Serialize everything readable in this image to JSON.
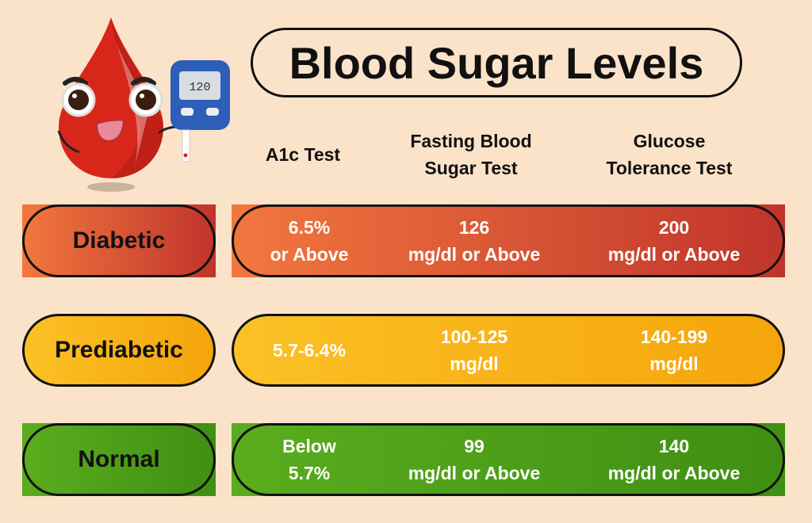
{
  "title": "Blood Sugar Levels",
  "meter_display": "120",
  "columns": [
    {
      "line1": "A1c Test",
      "line2": ""
    },
    {
      "line1": "Fasting Blood",
      "line2": "Sugar Test"
    },
    {
      "line1": "Glucose",
      "line2": "Tolerance Test"
    }
  ],
  "rows": [
    {
      "label": "Diabetic",
      "color_from": "#f2773f",
      "color_to": "#c0342b",
      "cells": [
        [
          "6.5%",
          "or Above"
        ],
        [
          "126",
          "mg/dl or Above"
        ],
        [
          "200",
          "mg/dl or Above"
        ]
      ]
    },
    {
      "label": "Prediabetic",
      "color_from": "#fbc126",
      "color_to": "#f5a50b",
      "cells": [
        [
          "5.7-6.4%",
          ""
        ],
        [
          "100-125",
          "mg/dl"
        ],
        [
          "140-199",
          "mg/dl"
        ]
      ]
    },
    {
      "label": "Normal",
      "color_from": "#5aad1e",
      "color_to": "#3f8f12",
      "cells": [
        [
          "Below",
          "5.7%"
        ],
        [
          "99",
          "mg/dl or Above"
        ],
        [
          "140",
          "mg/dl or Above"
        ]
      ]
    }
  ]
}
